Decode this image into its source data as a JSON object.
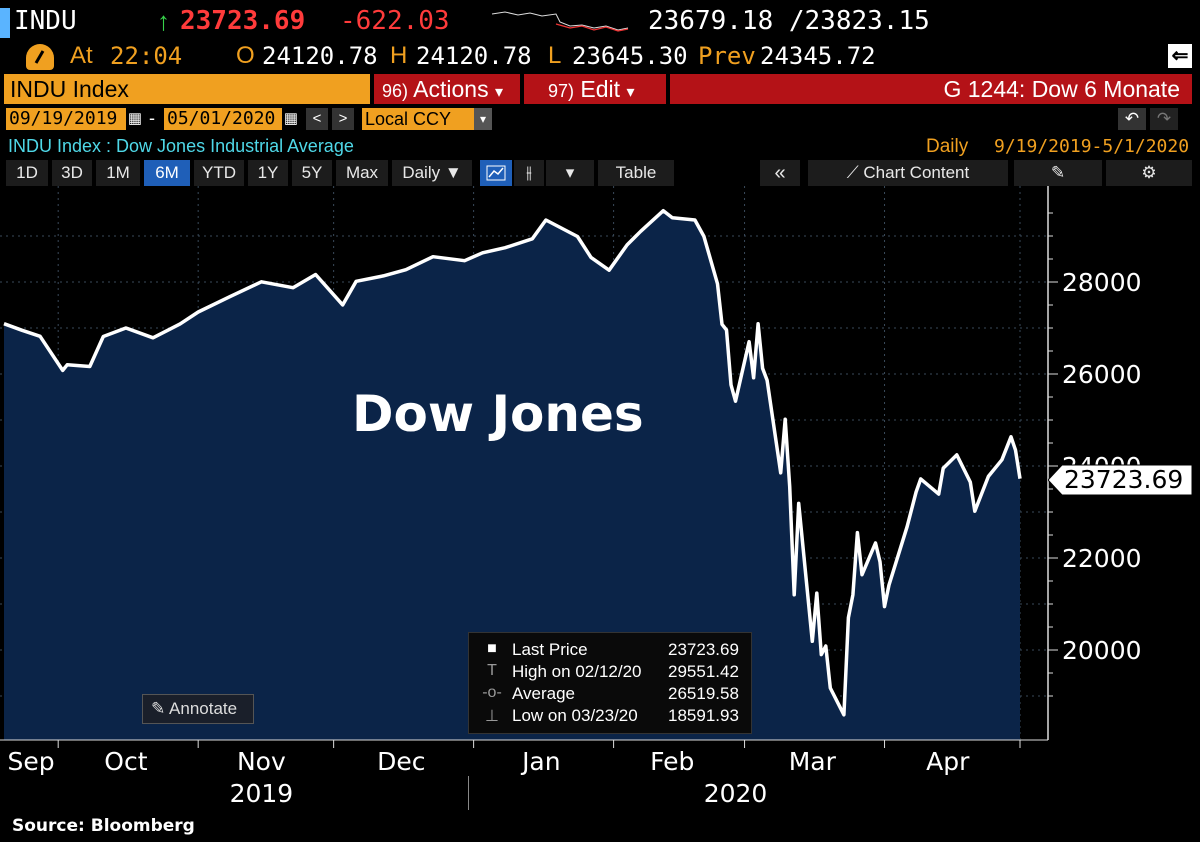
{
  "header": {
    "ticker": "INDU",
    "arrow": "↑",
    "last": "23723.69",
    "change": "-622.03",
    "range_text": "23679.18 /23823.15",
    "at_label": "At",
    "time": "22:04",
    "open_label": "O",
    "open": "24120.78",
    "high_label": "H",
    "high": "24120.78",
    "low_label": "L",
    "low": "23645.30",
    "prev_label": "Prev",
    "prev": "24345.72"
  },
  "command_bar": {
    "security": "INDU Index",
    "actions_num": "96)",
    "actions_label": "Actions",
    "edit_num": "97)",
    "edit_label": "Edit",
    "page_title": "G 1244: Dow 6 Monate",
    "caret": "▾"
  },
  "date_range": {
    "start": "09/19/2019",
    "dash": "-",
    "end": "05/01/2020",
    "prev_btn": "<",
    "next_btn": ">",
    "currency": "Local CCY",
    "undo": "↶",
    "redo": "↷"
  },
  "subtitle": {
    "security_desc": "INDU Index : Dow Jones Industrial Average",
    "frequency": "Daily",
    "period": "9/19/2019-5/1/2020"
  },
  "toolbar": {
    "periods": [
      "1D",
      "3D",
      "1M",
      "6M",
      "YTD",
      "1Y",
      "5Y",
      "Max"
    ],
    "selected_period": "6M",
    "frequency_label": "Daily ▼",
    "table_label": "Table",
    "collapse_label": "«",
    "chart_content_label": "Chart Content"
  },
  "chart_data": {
    "type": "area",
    "title": "Dow Jones",
    "ylim": [
      18000,
      30000
    ],
    "y_ticks": [
      "28000",
      "26000",
      "24000",
      "22000",
      "20000"
    ],
    "y_tick_values": [
      28000,
      26000,
      24000,
      22000,
      20000
    ],
    "x_ticks": [
      "Sep",
      "Oct",
      "Nov",
      "Dec",
      "Jan",
      "Feb",
      "Mar",
      "Apr"
    ],
    "x_years": [
      "2019",
      "2020"
    ],
    "last_price_label": "23723.69",
    "grid": true,
    "colors": {
      "area": "#0b2448",
      "line": "#ffffff",
      "background": "#000000"
    },
    "series": [
      {
        "x": [
          "2019-09-19",
          "2019-09-23",
          "2019-09-27",
          "2019-10-02",
          "2019-10-03",
          "2019-10-08",
          "2019-10-11",
          "2019-10-16",
          "2019-10-22",
          "2019-10-28",
          "2019-11-01",
          "2019-11-08",
          "2019-11-15",
          "2019-11-22",
          "2019-11-27",
          "2019-12-03",
          "2019-12-06",
          "2019-12-12",
          "2019-12-17",
          "2019-12-23",
          "2019-12-30",
          "2020-01-03",
          "2020-01-08",
          "2020-01-14",
          "2020-01-17",
          "2020-01-24",
          "2020-01-27",
          "2020-01-31",
          "2020-02-04",
          "2020-02-07",
          "2020-02-12",
          "2020-02-14",
          "2020-02-19",
          "2020-02-21",
          "2020-02-24",
          "2020-02-25",
          "2020-02-26",
          "2020-02-27",
          "2020-02-28",
          "2020-03-02",
          "2020-03-03",
          "2020-03-04",
          "2020-03-05",
          "2020-03-06",
          "2020-03-09",
          "2020-03-10",
          "2020-03-11",
          "2020-03-12",
          "2020-03-13",
          "2020-03-16",
          "2020-03-17",
          "2020-03-18",
          "2020-03-19",
          "2020-03-20",
          "2020-03-23",
          "2020-03-24",
          "2020-03-25",
          "2020-03-26",
          "2020-03-27",
          "2020-03-30",
          "2020-03-31",
          "2020-04-01",
          "2020-04-02",
          "2020-04-06",
          "2020-04-08",
          "2020-04-09",
          "2020-04-13",
          "2020-04-14",
          "2020-04-17",
          "2020-04-20",
          "2020-04-21",
          "2020-04-24",
          "2020-04-27",
          "2020-04-29",
          "2020-04-30",
          "2020-05-01"
        ],
        "y": [
          27094,
          26950,
          26820,
          26078,
          26201,
          26164,
          26816,
          27001,
          26788,
          27090,
          27347,
          27681,
          28005,
          27876,
          28164,
          27502,
          28015,
          28132,
          28267,
          28551,
          28462,
          28634,
          28745,
          28940,
          29348,
          28989,
          28535,
          28256,
          28807,
          29102,
          29551,
          29398,
          29348,
          28992,
          27961,
          27081,
          26957,
          25766,
          25409,
          26703,
          25917,
          27091,
          26121,
          25865,
          23851,
          25018,
          23553,
          21200,
          23186,
          20189,
          21237,
          19899,
          20087,
          19174,
          18592,
          20705,
          21200,
          22552,
          21637,
          22327,
          21917,
          20944,
          21413,
          22680,
          23434,
          23719,
          23390,
          23950,
          24242,
          23650,
          23018,
          23775,
          24134,
          24634,
          24346,
          23724
        ]
      }
    ]
  },
  "legend": {
    "rows": [
      {
        "label": "Last Price",
        "value": "23723.69"
      },
      {
        "label": "High on 02/12/20",
        "value": "29551.42"
      },
      {
        "label": "Average",
        "value": "26519.58"
      },
      {
        "label": "Low on 03/23/20",
        "value": "18591.93"
      }
    ]
  },
  "annotate_label": "Annotate",
  "source": "Source: Bloomberg"
}
